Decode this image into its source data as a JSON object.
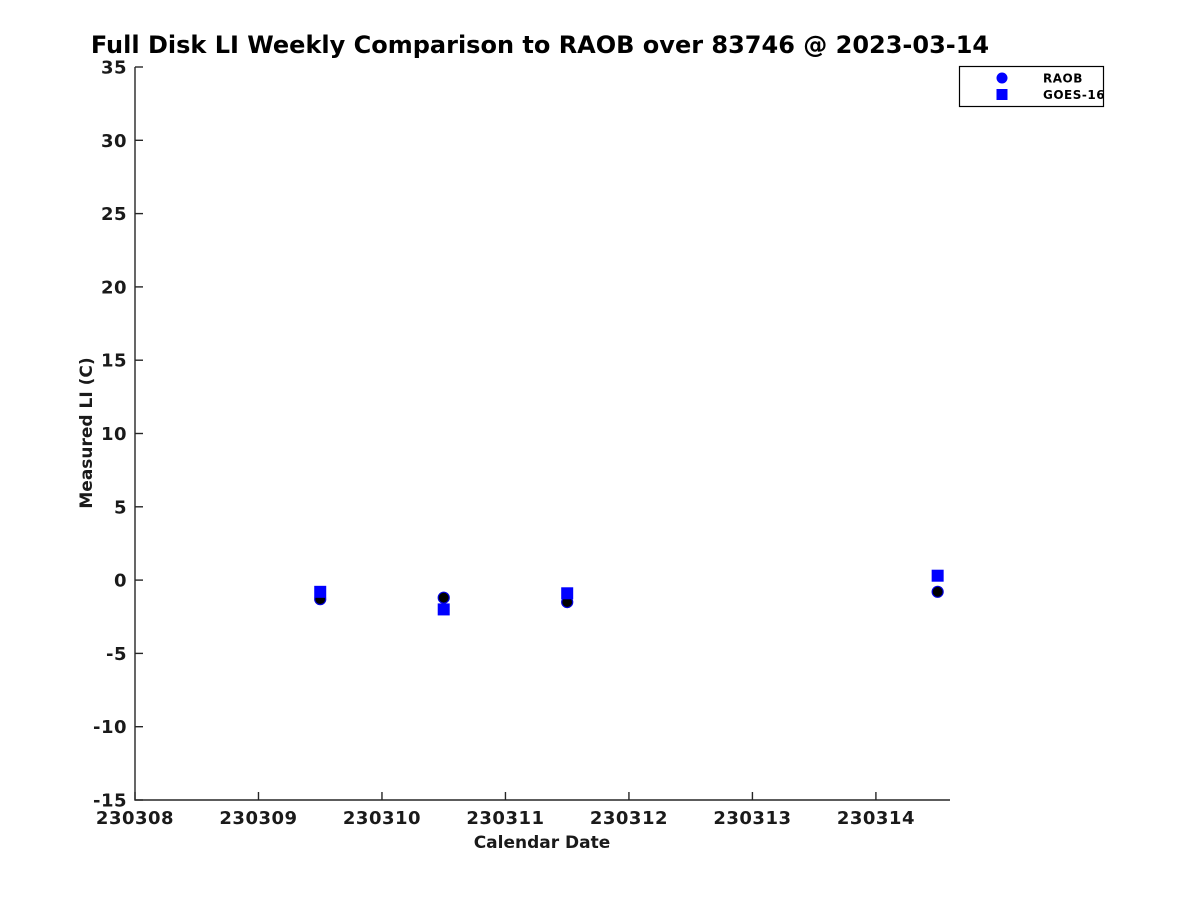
{
  "title": "Full Disk LI Weekly Comparison to RAOB over 83746 @ 2023-03-14",
  "colors": {
    "accent": "#0000ff",
    "raob_face": "#000000",
    "raob_edge": "#0000dd",
    "goes_face": "#0000ff",
    "axis": "#262626",
    "tick_text": "#1a1a1a",
    "background": "#ffffff"
  },
  "legend": {
    "items": [
      {
        "label": "RAOB",
        "marker": "circle-icon",
        "color": "#0000ff"
      },
      {
        "label": "GOES-16",
        "marker": "square-icon",
        "color": "#0000ff"
      }
    ]
  },
  "chart_data": {
    "type": "scatter",
    "title": "Full Disk LI Weekly Comparison to RAOB over 83746 @ 2023-03-14",
    "xlabel": "Calendar Date",
    "ylabel": "Measured LI (C)",
    "xlim": [
      230308,
      230314.6
    ],
    "ylim": [
      -15,
      35
    ],
    "x_ticks": [
      230308,
      230309,
      230310,
      230311,
      230312,
      230313,
      230314
    ],
    "y_ticks": [
      -15,
      -10,
      -5,
      0,
      5,
      10,
      15,
      20,
      25,
      30,
      35
    ],
    "grid": false,
    "legend_position": "top-right",
    "series": [
      {
        "name": "RAOB",
        "marker": "circle",
        "marker_face": "#000000",
        "marker_edge": "#0000dd",
        "x": [
          230309.5,
          230310.5,
          230311.5,
          230314.5
        ],
        "y": [
          -1.3,
          -1.2,
          -1.5,
          -0.8
        ]
      },
      {
        "name": "GOES-16",
        "marker": "square",
        "marker_face": "#0000ff",
        "marker_edge": "#0000ff",
        "x": [
          230309.5,
          230310.5,
          230311.5,
          230314.5
        ],
        "y": [
          -0.8,
          -2.0,
          -0.9,
          0.3
        ]
      }
    ]
  }
}
